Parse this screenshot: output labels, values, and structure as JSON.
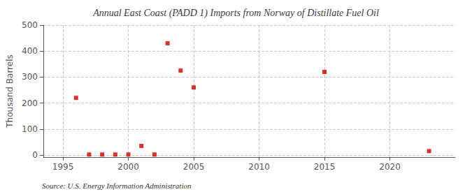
{
  "chart_data": {
    "type": "scatter",
    "title": "Annual East Coast (PADD 1) Imports from Norway of Distillate Fuel Oil",
    "ylabel": "Thousand Barrels",
    "annotations": [
      "Source: U.S. Energy Information Administration"
    ],
    "x": [
      1996,
      1997,
      1998,
      1999,
      2000,
      2001,
      2002,
      2003,
      2004,
      2005,
      2015,
      2023
    ],
    "values": [
      220,
      2,
      2,
      2,
      2,
      35,
      2,
      430,
      325,
      260,
      320,
      15
    ],
    "color": "#cc0000",
    "marker": "square",
    "xlim": [
      1993.5,
      2025
    ],
    "xticks": [
      1995,
      2000,
      2005,
      2010,
      2015,
      2020
    ],
    "ylim": [
      -8,
      500
    ],
    "yticks": [
      0,
      100,
      200,
      300,
      400,
      500
    ],
    "grid": true
  }
}
